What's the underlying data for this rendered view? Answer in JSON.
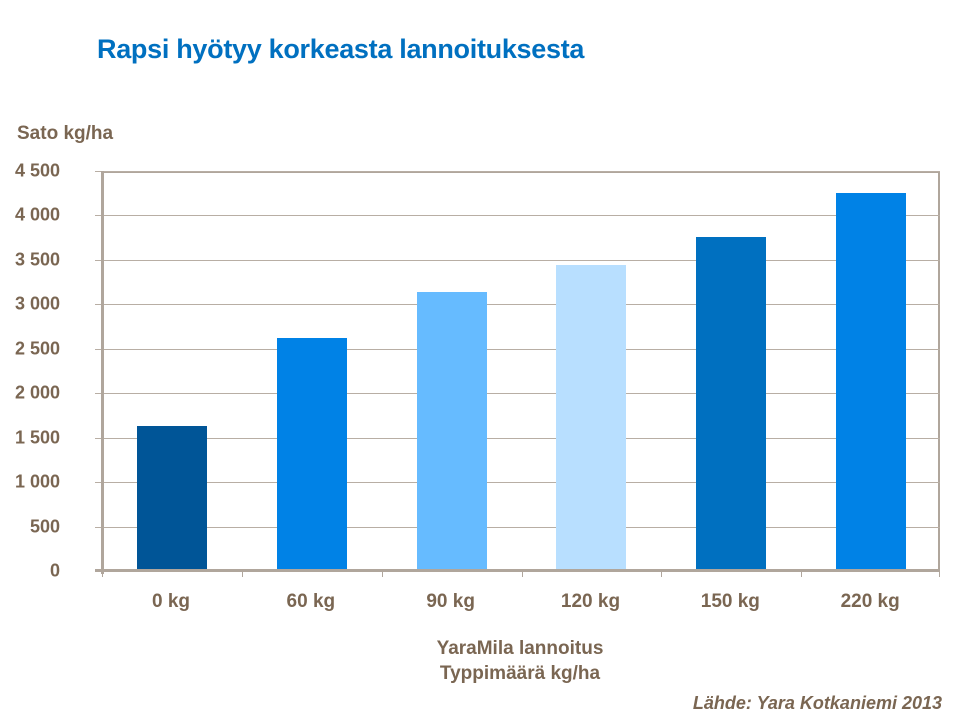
{
  "slide": {
    "title": "Rapsi hyötyy korkeasta lannoituksesta",
    "source": "Lähde:  Yara Kotkaniemi  2013"
  },
  "chart_data": {
    "type": "bar",
    "title": "Rapsi hyötyy korkeasta lannoituksesta",
    "ylabel": "Sato kg/ha",
    "xlabel": "YaraMila  lannoitus\nTyppimäärä kg/ha",
    "xlabel_lines": [
      "YaraMila  lannoitus",
      "Typpimäärä kg/ha"
    ],
    "categories": [
      "0 kg",
      "60 kg",
      "90 kg",
      "120 kg",
      "150 kg",
      "220 kg"
    ],
    "values": [
      1630,
      2620,
      3140,
      3440,
      3760,
      4250
    ],
    "bar_colors": [
      "#005597",
      "#0082e6",
      "#66bbff",
      "#b8dfff",
      "#0070c0",
      "#0082e6"
    ],
    "ylim": [
      0,
      4500
    ],
    "yticks": [
      0,
      500,
      1000,
      1500,
      2000,
      2500,
      3000,
      3500,
      4000,
      4500
    ],
    "ytick_labels": [
      "0",
      "500",
      "1 000",
      "1 500",
      "2 000",
      "2 500",
      "3 000",
      "3 500",
      "4 000",
      "4 500"
    ],
    "grid": true,
    "legend": null,
    "source": "Lähde:  Yara Kotkaniemi  2013"
  },
  "colors": {
    "title": "#0070c0",
    "text": "#7a6652",
    "axis": "#b0a69c"
  }
}
